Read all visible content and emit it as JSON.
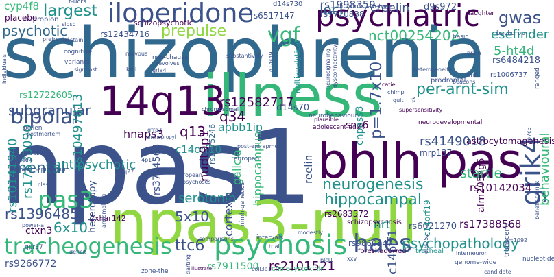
{
  "colors": {
    "dark_purple": "#440154",
    "indigo": "#3b528b",
    "blue": "#31688e",
    "teal": "#21918c",
    "green": "#35b779",
    "lime": "#90d743",
    "yellow": "#fde725"
  },
  "words": [
    "schizophrenia",
    "npas1",
    "npas3-null",
    "illness",
    "bhlh pas",
    "14q13",
    "psychiatric",
    "iloperidone",
    "psychosis",
    "tracheogenesis",
    "haes",
    "bipolar",
    "pas3",
    "grik4",
    "neurogenesis",
    "hippocampal",
    "vgf",
    "largest",
    "psychotic",
    "mental",
    "prepulse",
    "nct00254202",
    "gwas",
    "p=1.7x10",
    "per-arnt-sim",
    "loci",
    "subgranular",
    "antipsychotic",
    "psychopathology",
    "q34",
    "rs12582717",
    "ttc6",
    "rs10497813",
    "5x10",
    "6x10",
    "serotonin",
    "cyp4f8",
    "creelin",
    "esefinder",
    "5-ht4d",
    "d9s972",
    "hnaps3",
    "q13",
    "c14orf10",
    "apbb1ip",
    "snx6",
    "cnpass3",
    "d14s70",
    "rs4149018",
    "astrocytomagenesis",
    "nudt9p1",
    "rs17388568",
    "afm205xg5",
    "behavioural",
    "rs2101521",
    "rs7911500",
    "rs9266772",
    "rs1396485",
    "rs10141940",
    "rs17533090",
    "ctxn3",
    "rs3764563",
    "rs1775246",
    "heterotopy",
    "cortexin",
    "galicia",
    "hippocampus",
    "nrt",
    "c14orf1",
    "startle",
    "rs10142034",
    "rs2683572",
    "mrp137",
    "rs6021270",
    "rs9860547",
    "rs7720838",
    "rs1998359",
    "rs6517147",
    "rs12434716",
    "rs6484218",
    "rs1006737",
    "rs12722605",
    "reelin",
    "c14orf19",
    "multianalytical",
    "schizopsychotic",
    "2xhar142",
    "foreshadowed",
    "tracheal",
    "cholecystokinin",
    "schizopsychosis",
    "neurobehaviour",
    "adolescent-adult",
    "plausible",
    "bupropion",
    "d14s730",
    "t-ucrs",
    "dihydroxyacetone",
    "daughter",
    "backdrop",
    "basic",
    "placebo",
    "sipsc",
    "abstain",
    "cognitive",
    "variants",
    "signpost",
    "nervous",
    "non-chagas",
    "revolves",
    "gria4",
    "kell",
    "catie",
    "chimp",
    "quit",
    "xk",
    "supersensitivity",
    "spectrum",
    "neurodevelopmental",
    "chromosomal",
    "darting",
    "post-entrapment",
    "europan",
    "european",
    "psychoses",
    "4q27",
    "4p14",
    "gfra2",
    "aminopropyl",
    "neuroepithelium",
    "adora2a",
    "xkr4",
    "class",
    "power-a",
    "gpr37",
    "deficit",
    "antismoking",
    "nimh-genetics",
    "comparisons",
    "trial",
    "intervals",
    "modestly",
    "zone-the",
    "illustrate",
    "coll3a1",
    "plcl1",
    "genome-wide",
    "candidate",
    "transcend",
    "d9s752",
    "interneuron",
    "pollen",
    "postmortem",
    "individuals",
    "prefrontal",
    "d14s49",
    "substantively",
    "neurosignaling",
    "dysconnectivity",
    "heterogeneity",
    "beacons",
    "twin",
    "brain",
    "ranged",
    "prodromal",
    "p7c3",
    "benefit-to-risk",
    "nucleotide",
    "n=1092",
    "xxv",
    "frontiers",
    "rs2712",
    "myth",
    "isprasidone",
    "2.82-mb",
    "mhibi",
    "c.2097t",
    "e21",
    "snps",
    "wider",
    "neopallial",
    "commd10",
    "metabonomic",
    "glass",
    "gdnf",
    "tlr10"
  ]
}
